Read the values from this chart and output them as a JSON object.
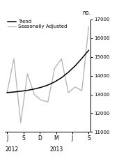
{
  "title": "",
  "ylabel": "no.",
  "ylim": [
    11000,
    17000
  ],
  "yticks": [
    11000,
    12000,
    13000,
    14000,
    15000,
    16000,
    17000
  ],
  "ytick_labels": [
    "11000",
    "12000",
    "13000",
    "14000",
    "15000",
    "16000",
    "17000"
  ],
  "xlabel_ticks": [
    "J",
    "S",
    "D",
    "M",
    "J",
    "S"
  ],
  "year_labels": [
    [
      "2012",
      0.0
    ],
    [
      "2013",
      0.4
    ]
  ],
  "trend_color": "#000000",
  "seasonal_color": "#b0b0b0",
  "background_color": "#ffffff",
  "legend_labels": [
    "Trend",
    "Seasonally Adjusted"
  ],
  "trend_values": [
    13100,
    13130,
    13170,
    13220,
    13290,
    13380,
    13500,
    13670,
    13890,
    14180,
    14520,
    14920,
    15350
  ],
  "seasonal_values": [
    13100,
    14900,
    11500,
    14100,
    13000,
    12700,
    12600,
    14400,
    14900,
    13100,
    13400,
    13200,
    16600
  ],
  "n_points": 13,
  "figwidth": 1.81,
  "figheight": 2.31,
  "dpi": 100
}
